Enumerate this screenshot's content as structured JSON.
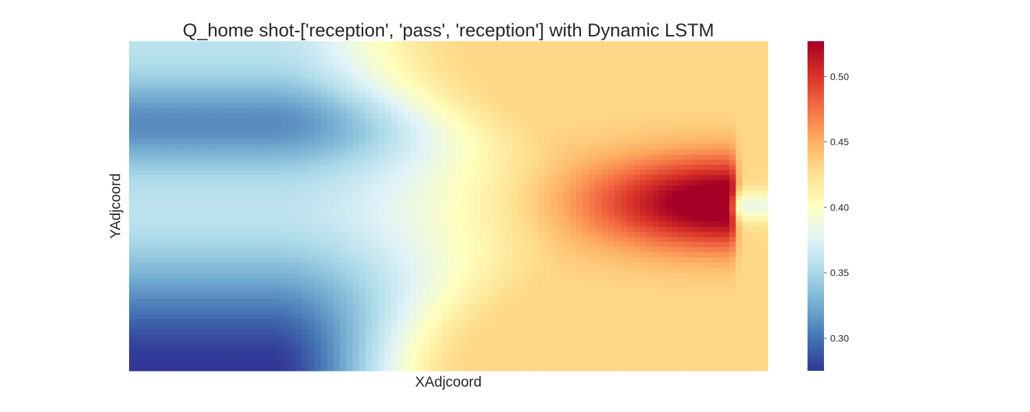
{
  "chart_data": {
    "type": "heatmap",
    "title": "Q_home shot-['reception', 'pass', 'reception'] with Dynamic LSTM",
    "xlabel": "XAdjcoord",
    "ylabel": "YAdjcoord",
    "grid": false,
    "colormap": "RdYlBu_r",
    "colorbar": {
      "vmin": 0.275,
      "vmax": 0.527,
      "ticks": [
        0.3,
        0.35,
        0.4,
        0.45,
        0.5
      ],
      "tick_labels": [
        "0.30",
        "0.35",
        "0.40",
        "0.45",
        "0.50"
      ],
      "colors": [
        "#313695",
        "#4575b4",
        "#74add1",
        "#abd9e9",
        "#e0f3f8",
        "#ffffbf",
        "#fee090",
        "#fdae61",
        "#f46d43",
        "#d73027",
        "#a50026"
      ]
    },
    "grid_size": {
      "cols": 100,
      "rows": 64
    },
    "value_profile": {
      "left_edge_top": 0.31,
      "left_edge_middle": 0.36,
      "left_edge_bottom": 0.28,
      "right_edge_typical": 0.43,
      "peak_value": 0.527,
      "peak_location": "right side, vertical center",
      "notch_value": 0.385
    }
  }
}
